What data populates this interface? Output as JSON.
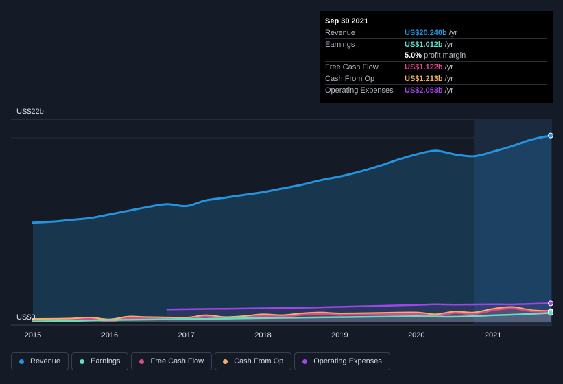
{
  "tooltip": {
    "date": "Sep 30 2021",
    "rows": [
      {
        "label": "Revenue",
        "value": "US$20.240b",
        "unit": "/yr",
        "color": "#2394df"
      },
      {
        "label": "Earnings",
        "value": "US$1.012b",
        "unit": "/yr",
        "color": "#5ce0c8"
      },
      {
        "label": "",
        "value": "5.0%",
        "unit": "profit margin",
        "color": "#ffffff"
      },
      {
        "label": "Free Cash Flow",
        "value": "US$1.122b",
        "unit": "/yr",
        "color": "#e0488a"
      },
      {
        "label": "Cash From Op",
        "value": "US$1.213b",
        "unit": "/yr",
        "color": "#f2b263"
      },
      {
        "label": "Operating Expenses",
        "value": "US$2.053b",
        "unit": "/yr",
        "color": "#9f46e4"
      }
    ]
  },
  "legend": [
    {
      "label": "Revenue",
      "color": "#2394df"
    },
    {
      "label": "Earnings",
      "color": "#5ce0c8"
    },
    {
      "label": "Free Cash Flow",
      "color": "#e0488a"
    },
    {
      "label": "Cash From Op",
      "color": "#f2b263"
    },
    {
      "label": "Operating Expenses",
      "color": "#9f46e4"
    }
  ],
  "chart_data": {
    "type": "area",
    "title": "",
    "xlabel": "",
    "ylabel": "",
    "y_top_label": "US$22b",
    "y_bottom_label": "US$0",
    "ylim": [
      0,
      22
    ],
    "xlim": [
      2015.0,
      2021.75
    ],
    "x_ticks": [
      "2015",
      "2016",
      "2017",
      "2018",
      "2019",
      "2020",
      "2021"
    ],
    "highlight_from": 2020.75,
    "series": [
      {
        "name": "Revenue",
        "color": "#2394df",
        "x": [
          2015.0,
          2015.25,
          2015.5,
          2015.75,
          2016.0,
          2016.25,
          2016.5,
          2016.75,
          2017.0,
          2017.25,
          2017.5,
          2017.75,
          2018.0,
          2018.25,
          2018.5,
          2018.75,
          2019.0,
          2019.25,
          2019.5,
          2019.75,
          2020.0,
          2020.25,
          2020.5,
          2020.75,
          2021.0,
          2021.25,
          2021.5,
          2021.75
        ],
        "values": [
          10.8,
          10.9,
          11.1,
          11.3,
          11.7,
          12.1,
          12.5,
          12.8,
          12.6,
          13.2,
          13.5,
          13.8,
          14.1,
          14.5,
          14.9,
          15.4,
          15.8,
          16.3,
          16.9,
          17.6,
          18.2,
          18.6,
          18.2,
          18.0,
          18.5,
          19.1,
          19.8,
          20.24
        ]
      },
      {
        "name": "Earnings",
        "color": "#5ce0c8",
        "x": [
          2015.0,
          2015.5,
          2016.0,
          2016.5,
          2017.0,
          2017.5,
          2018.0,
          2018.5,
          2019.0,
          2019.5,
          2020.0,
          2020.5,
          2021.0,
          2021.5,
          2021.75
        ],
        "values": [
          0.1,
          0.15,
          0.25,
          0.3,
          0.35,
          0.4,
          0.45,
          0.5,
          0.55,
          0.6,
          0.65,
          0.6,
          0.75,
          0.9,
          1.012
        ]
      },
      {
        "name": "Free Cash Flow",
        "color": "#e0488a",
        "x": [
          2015.0,
          2015.5,
          2015.75,
          2016.0,
          2016.25,
          2016.5,
          2017.0,
          2017.25,
          2017.5,
          2017.75,
          2018.0,
          2018.25,
          2018.5,
          2018.75,
          2019.0,
          2019.5,
          2020.0,
          2020.25,
          2020.5,
          2020.75,
          2021.0,
          2021.25,
          2021.5,
          2021.75
        ],
        "values": [
          0.2,
          0.25,
          0.35,
          0.1,
          0.45,
          0.4,
          0.35,
          0.6,
          0.4,
          0.5,
          0.7,
          0.6,
          0.8,
          0.9,
          0.8,
          0.85,
          0.9,
          0.7,
          1.0,
          0.9,
          1.3,
          1.5,
          1.2,
          1.122
        ]
      },
      {
        "name": "Cash From Op",
        "color": "#f2b263",
        "x": [
          2015.0,
          2015.5,
          2015.75,
          2016.0,
          2016.25,
          2016.5,
          2017.0,
          2017.25,
          2017.5,
          2017.75,
          2018.0,
          2018.25,
          2018.5,
          2018.75,
          2019.0,
          2019.5,
          2020.0,
          2020.25,
          2020.5,
          2020.75,
          2021.0,
          2021.25,
          2021.5,
          2021.75
        ],
        "values": [
          0.35,
          0.4,
          0.5,
          0.3,
          0.6,
          0.55,
          0.5,
          0.75,
          0.55,
          0.65,
          0.85,
          0.75,
          0.95,
          1.05,
          0.95,
          1.0,
          1.05,
          0.85,
          1.15,
          1.05,
          1.45,
          1.65,
          1.3,
          1.213
        ]
      },
      {
        "name": "Operating Expenses",
        "color": "#9f46e4",
        "x": [
          2016.75,
          2017.0,
          2017.5,
          2018.0,
          2018.5,
          2019.0,
          2019.5,
          2020.0,
          2020.25,
          2020.5,
          2021.0,
          2021.25,
          2021.5,
          2021.75
        ],
        "values": [
          1.4,
          1.42,
          1.47,
          1.52,
          1.58,
          1.68,
          1.78,
          1.88,
          1.95,
          1.92,
          1.95,
          1.93,
          2.0,
          2.053
        ]
      }
    ]
  }
}
